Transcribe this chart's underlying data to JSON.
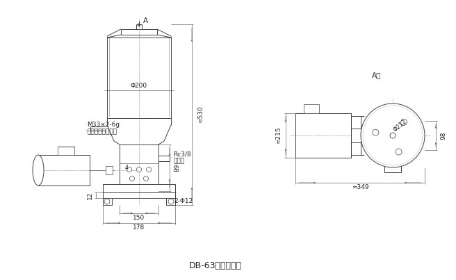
{
  "bg_color": "#ffffff",
  "line_color": "#404040",
  "dim_color": "#404040",
  "title": "DB-63单线干油泵",
  "title_fontsize": 9,
  "label_fontsize": 6.5,
  "fig_width": 6.56,
  "fig_height": 4.03,
  "annotations": {
    "phi200": "Φ200",
    "phi12": "2-Φ12",
    "phi212": "Φ212",
    "m33": "M33×2-6g",
    "jiayoukou": "加油口（外螺纹）",
    "rc38": "Rc3/8",
    "chuyoukou": "出油口",
    "dim530": "≈530",
    "dim215": "≈215",
    "dim349": "≈349",
    "dim150": "150",
    "dim178": "178",
    "dim89": "89",
    "dim12": "12",
    "dim4": "4",
    "dim98": "98",
    "A_label": "A",
    "Axiang": "A向"
  }
}
